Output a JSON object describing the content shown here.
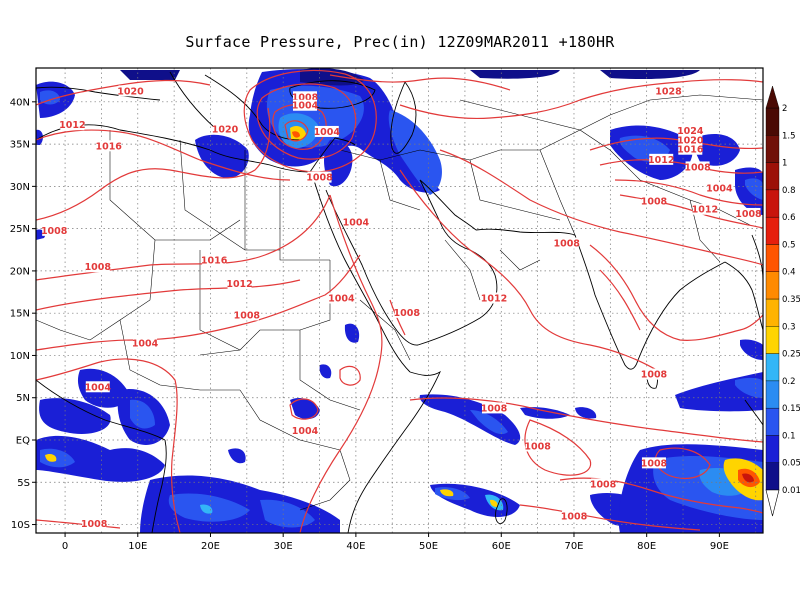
{
  "title": "Surface Pressure,  Prec(in) 12Z09MAR2011 +180HR",
  "axes": {
    "x_ticks": [
      "0",
      "10E",
      "20E",
      "30E",
      "40E",
      "50E",
      "60E",
      "70E",
      "80E",
      "90E"
    ],
    "y_ticks": [
      "40N",
      "35N",
      "30N",
      "25N",
      "20N",
      "15N",
      "10N",
      "5N",
      "EQ",
      "5S",
      "10S"
    ],
    "x_values": [
      0,
      10,
      20,
      30,
      40,
      50,
      60,
      70,
      80,
      90
    ],
    "y_values": [
      40,
      35,
      30,
      25,
      20,
      15,
      10,
      5,
      0,
      -5,
      -10
    ],
    "lon_range": [
      -4,
      96
    ],
    "lat_range": [
      -11,
      44
    ],
    "grid": "dotted"
  },
  "colorbar": {
    "levels": [
      "0.01",
      "0.05",
      "0.1",
      "0.15",
      "0.2",
      "0.25",
      "0.3",
      "0.35",
      "0.4",
      "0.5",
      "0.6",
      "0.8",
      "1",
      "1.5",
      "2"
    ],
    "colors": [
      "#0f0f8a",
      "#1a1fd6",
      "#2a55f0",
      "#2b8cf2",
      "#33b6f7",
      "#ffd400",
      "#ffb300",
      "#ff8a00",
      "#ff5500",
      "#e61f0d",
      "#c8140c",
      "#9c1108",
      "#701008",
      "#4a0a04"
    ]
  },
  "contour_color": "#e23a3a",
  "isobar_labels": [
    {
      "text": "1020",
      "lon": 9,
      "lat": 41
    },
    {
      "text": "1012",
      "lon": 1,
      "lat": 37
    },
    {
      "text": "1016",
      "lon": 6,
      "lat": 34.5
    },
    {
      "text": "1020",
      "lon": 22,
      "lat": 36.5
    },
    {
      "text": "1008",
      "lon": 33,
      "lat": 40.3
    },
    {
      "text": "1004",
      "lon": 33,
      "lat": 39.3
    },
    {
      "text": "1004",
      "lon": 36,
      "lat": 36.2
    },
    {
      "text": "1008",
      "lon": 35,
      "lat": 30.8
    },
    {
      "text": "1004",
      "lon": 40,
      "lat": 25.5
    },
    {
      "text": "1008",
      "lon": -1.5,
      "lat": 24.5
    },
    {
      "text": "1008",
      "lon": 4.5,
      "lat": 20.2
    },
    {
      "text": "1016",
      "lon": 20.5,
      "lat": 21
    },
    {
      "text": "1012",
      "lon": 24,
      "lat": 18.2
    },
    {
      "text": "1004",
      "lon": 38,
      "lat": 16.5
    },
    {
      "text": "1008",
      "lon": 25,
      "lat": 14.5
    },
    {
      "text": "1004",
      "lon": 11,
      "lat": 11.2
    },
    {
      "text": "1004",
      "lon": 4.5,
      "lat": 6
    },
    {
      "text": "1008",
      "lon": 47,
      "lat": 14.8
    },
    {
      "text": "1012",
      "lon": 59,
      "lat": 16.5
    },
    {
      "text": "1008",
      "lon": 69,
      "lat": 23
    },
    {
      "text": "1008",
      "lon": 59,
      "lat": 3.5
    },
    {
      "text": "1004",
      "lon": 33,
      "lat": 0.8
    },
    {
      "text": "1008",
      "lon": 65,
      "lat": -1
    },
    {
      "text": "1008",
      "lon": 74,
      "lat": -5.5
    },
    {
      "text": "1008",
      "lon": 70,
      "lat": -9.3
    },
    {
      "text": "1008",
      "lon": 4,
      "lat": -10.2
    },
    {
      "text": "1008",
      "lon": 81,
      "lat": -3
    },
    {
      "text": "1008",
      "lon": 81,
      "lat": 7.5
    },
    {
      "text": "1028",
      "lon": 83,
      "lat": 41
    },
    {
      "text": "1024",
      "lon": 86,
      "lat": 36.3
    },
    {
      "text": "1020",
      "lon": 86,
      "lat": 35.2
    },
    {
      "text": "1016",
      "lon": 86,
      "lat": 34.1
    },
    {
      "text": "1012",
      "lon": 82,
      "lat": 32.9
    },
    {
      "text": "1008",
      "lon": 87,
      "lat": 32
    },
    {
      "text": "1004",
      "lon": 90,
      "lat": 29.5
    },
    {
      "text": "1008",
      "lon": 81,
      "lat": 28
    },
    {
      "text": "1012",
      "lon": 88,
      "lat": 27
    },
    {
      "text": "1008",
      "lon": 94,
      "lat": 26.5
    }
  ]
}
